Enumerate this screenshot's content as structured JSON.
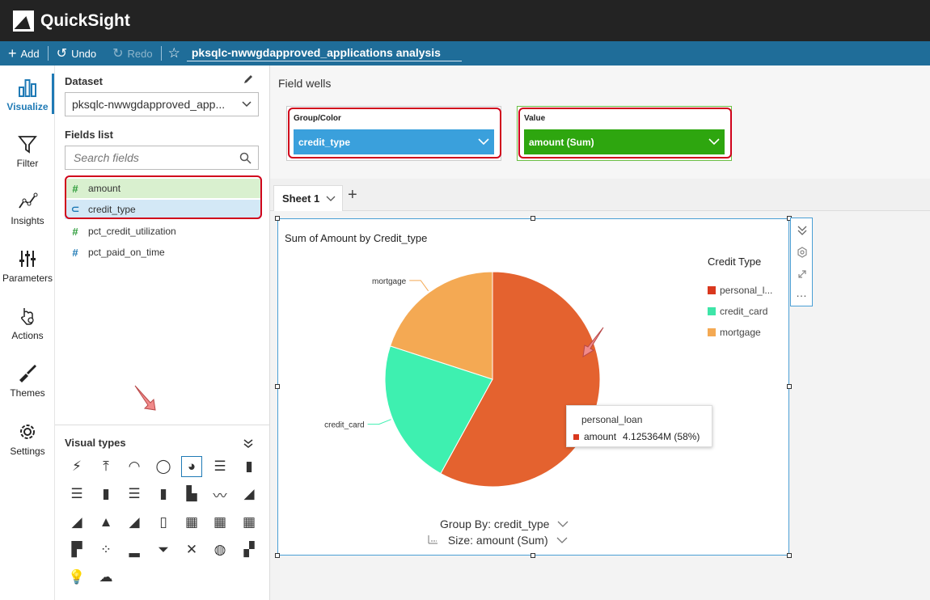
{
  "app": {
    "title": "QuickSight"
  },
  "toolbar": {
    "add_label": "Add",
    "undo_label": "Undo",
    "redo_label": "Redo",
    "analysis_name": "pksqlc-nwwgdapproved_applications analysis"
  },
  "leftnav": {
    "items": [
      {
        "label": "Visualize",
        "icon": "bar-chart-icon"
      },
      {
        "label": "Filter",
        "icon": "filter-icon"
      },
      {
        "label": "Insights",
        "icon": "insights-icon"
      },
      {
        "label": "Parameters",
        "icon": "parameters-icon"
      },
      {
        "label": "Actions",
        "icon": "actions-icon"
      },
      {
        "label": "Themes",
        "icon": "brush-icon"
      },
      {
        "label": "Settings",
        "icon": "gear-icon"
      }
    ]
  },
  "datapanel": {
    "dataset_label": "Dataset",
    "dataset_value": "pksqlc-nwwgdapproved_app...",
    "fields_label": "Fields list",
    "search_placeholder": "Search fields",
    "fields": [
      {
        "name": "amount",
        "kind": "measure",
        "icon": "#"
      },
      {
        "name": "credit_type",
        "kind": "dimension",
        "icon": "⊂"
      },
      {
        "name": "pct_credit_utilization",
        "kind": "measure",
        "icon": "#"
      },
      {
        "name": "pct_paid_on_time",
        "kind": "measure",
        "icon": "#"
      }
    ],
    "visual_types_label": "Visual types"
  },
  "fieldwells": {
    "title": "Field wells",
    "group": {
      "title": "Group/Color",
      "value": "credit_type",
      "color": "#3aa0dc"
    },
    "value": {
      "title": "Value",
      "value": "amount (Sum)",
      "color": "#2ea60f"
    }
  },
  "sheet": {
    "tab_label": "Sheet 1"
  },
  "visual": {
    "group_by": "Group By: credit_type",
    "size_by": "Size: amount (Sum)"
  },
  "tooltip": {
    "title": "personal_loan",
    "measure": "amount",
    "value": "4.125364M (58%)"
  },
  "chart_data": {
    "type": "pie",
    "title": "Sum of Amount by Credit_type",
    "legend_title": "Credit Type",
    "legend_position": "right",
    "categories": [
      "personal_loan",
      "credit_card",
      "mortgage"
    ],
    "legend_labels": [
      "personal_l...",
      "credit_card",
      "mortgage"
    ],
    "values": [
      58,
      22,
      20
    ],
    "value_unit": "percent",
    "colors": [
      "#e4622f",
      "#3ef0b0",
      "#f4a953"
    ],
    "legend_colors": [
      "#d9381e",
      "#3ee5a8",
      "#f4a953"
    ]
  }
}
